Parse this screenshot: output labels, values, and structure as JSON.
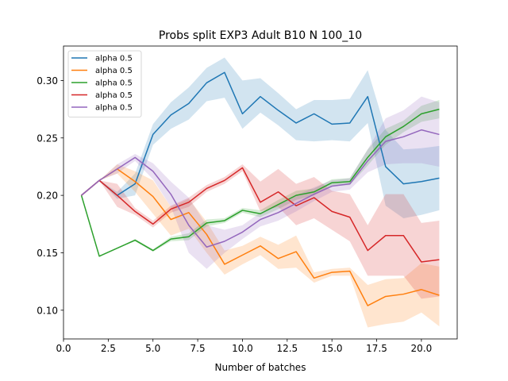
{
  "chart_data": {
    "type": "line",
    "title": "Probs split EXP3 Adult B10 N 100_10",
    "xlabel": "Number of batches",
    "ylabel": "",
    "xlim": [
      0,
      22.0
    ],
    "ylim": [
      0.075,
      0.33
    ],
    "xticks": [
      0.0,
      2.5,
      5.0,
      7.5,
      10.0,
      12.5,
      15.0,
      17.5,
      20.0
    ],
    "xtick_labels": [
      "0.0",
      "2.5",
      "5.0",
      "7.5",
      "10.0",
      "12.5",
      "15.0",
      "17.5",
      "20.0"
    ],
    "yticks": [
      0.1,
      0.15,
      0.2,
      0.25,
      0.3
    ],
    "ytick_labels": [
      "0.10",
      "0.15",
      "0.20",
      "0.25",
      "0.30"
    ],
    "grid": false,
    "legend_position": "top-left",
    "x": [
      1,
      2,
      3,
      4,
      5,
      6,
      7,
      8,
      9,
      10,
      11,
      12,
      13,
      14,
      15,
      16,
      17,
      18,
      19,
      20,
      21
    ],
    "series": [
      {
        "name": "alpha 0.5",
        "color": "#1f77b4",
        "values": [
          0.2,
          0.213,
          0.2,
          0.21,
          0.253,
          0.27,
          0.28,
          0.298,
          0.307,
          0.271,
          0.286,
          0.274,
          0.263,
          0.271,
          0.262,
          0.263,
          0.286,
          0.225,
          0.21,
          0.212,
          0.215
        ],
        "lower": [
          0.2,
          0.213,
          0.197,
          0.2,
          0.244,
          0.258,
          0.266,
          0.282,
          0.285,
          0.258,
          0.272,
          0.261,
          0.248,
          0.247,
          0.248,
          0.247,
          0.263,
          0.191,
          0.18,
          0.183,
          0.187
        ],
        "upper": [
          0.2,
          0.213,
          0.203,
          0.219,
          0.262,
          0.281,
          0.294,
          0.311,
          0.32,
          0.3,
          0.302,
          0.289,
          0.275,
          0.283,
          0.283,
          0.284,
          0.309,
          0.257,
          0.24,
          0.241,
          0.243
        ]
      },
      {
        "name": "alpha 0.5",
        "color": "#ff7f0e",
        "values": [
          0.2,
          0.213,
          0.223,
          0.212,
          0.199,
          0.179,
          0.185,
          0.166,
          0.14,
          0.148,
          0.156,
          0.145,
          0.151,
          0.128,
          0.133,
          0.134,
          0.104,
          0.112,
          0.114,
          0.118,
          0.113
        ],
        "lower": [
          0.2,
          0.213,
          0.219,
          0.203,
          0.184,
          0.165,
          0.171,
          0.15,
          0.131,
          0.14,
          0.148,
          0.136,
          0.137,
          0.124,
          0.13,
          0.13,
          0.085,
          0.088,
          0.09,
          0.098,
          0.086
        ],
        "upper": [
          0.2,
          0.213,
          0.227,
          0.221,
          0.213,
          0.19,
          0.197,
          0.177,
          0.152,
          0.156,
          0.164,
          0.157,
          0.165,
          0.133,
          0.136,
          0.137,
          0.122,
          0.127,
          0.128,
          0.141,
          0.138
        ]
      },
      {
        "name": "alpha 0.5",
        "color": "#2ca02c",
        "values": [
          0.2,
          0.147,
          0.154,
          0.161,
          0.152,
          0.162,
          0.164,
          0.176,
          0.178,
          0.187,
          0.184,
          0.192,
          0.2,
          0.203,
          0.211,
          0.212,
          0.233,
          0.251,
          0.26,
          0.271,
          0.275
        ],
        "lower": [
          0.2,
          0.147,
          0.154,
          0.16,
          0.151,
          0.16,
          0.161,
          0.173,
          0.176,
          0.185,
          0.181,
          0.188,
          0.196,
          0.2,
          0.208,
          0.209,
          0.226,
          0.244,
          0.255,
          0.264,
          0.267
        ],
        "upper": [
          0.2,
          0.147,
          0.154,
          0.162,
          0.153,
          0.164,
          0.167,
          0.179,
          0.18,
          0.189,
          0.187,
          0.196,
          0.204,
          0.206,
          0.214,
          0.215,
          0.24,
          0.258,
          0.265,
          0.278,
          0.283
        ]
      },
      {
        "name": "alpha 0.5",
        "color": "#d62728",
        "values": [
          0.2,
          0.213,
          0.2,
          0.186,
          0.175,
          0.188,
          0.194,
          0.206,
          0.213,
          0.224,
          0.194,
          0.203,
          0.191,
          0.198,
          0.186,
          0.181,
          0.152,
          0.165,
          0.165,
          0.142,
          0.144
        ],
        "lower": [
          0.2,
          0.213,
          0.19,
          0.183,
          0.172,
          0.185,
          0.19,
          0.203,
          0.21,
          0.221,
          0.186,
          0.19,
          0.174,
          0.18,
          0.17,
          0.16,
          0.13,
          0.13,
          0.13,
          0.11,
          0.112
        ],
        "upper": [
          0.2,
          0.213,
          0.21,
          0.189,
          0.178,
          0.191,
          0.198,
          0.209,
          0.216,
          0.227,
          0.212,
          0.223,
          0.21,
          0.216,
          0.204,
          0.201,
          0.174,
          0.201,
          0.201,
          0.176,
          0.178
        ]
      },
      {
        "name": "alpha 0.5",
        "color": "#9467bd",
        "values": [
          0.2,
          0.213,
          0.223,
          0.233,
          0.221,
          0.201,
          0.174,
          0.155,
          0.16,
          0.168,
          0.179,
          0.185,
          0.193,
          0.201,
          0.208,
          0.21,
          0.23,
          0.247,
          0.251,
          0.257,
          0.253
        ],
        "lower": [
          0.2,
          0.213,
          0.219,
          0.23,
          0.214,
          0.19,
          0.15,
          0.136,
          0.15,
          0.162,
          0.173,
          0.178,
          0.186,
          0.195,
          0.203,
          0.205,
          0.22,
          0.227,
          0.228,
          0.228,
          0.225
        ],
        "upper": [
          0.2,
          0.213,
          0.227,
          0.236,
          0.228,
          0.212,
          0.198,
          0.174,
          0.17,
          0.174,
          0.185,
          0.192,
          0.2,
          0.207,
          0.213,
          0.215,
          0.24,
          0.267,
          0.274,
          0.286,
          0.281
        ]
      }
    ]
  }
}
